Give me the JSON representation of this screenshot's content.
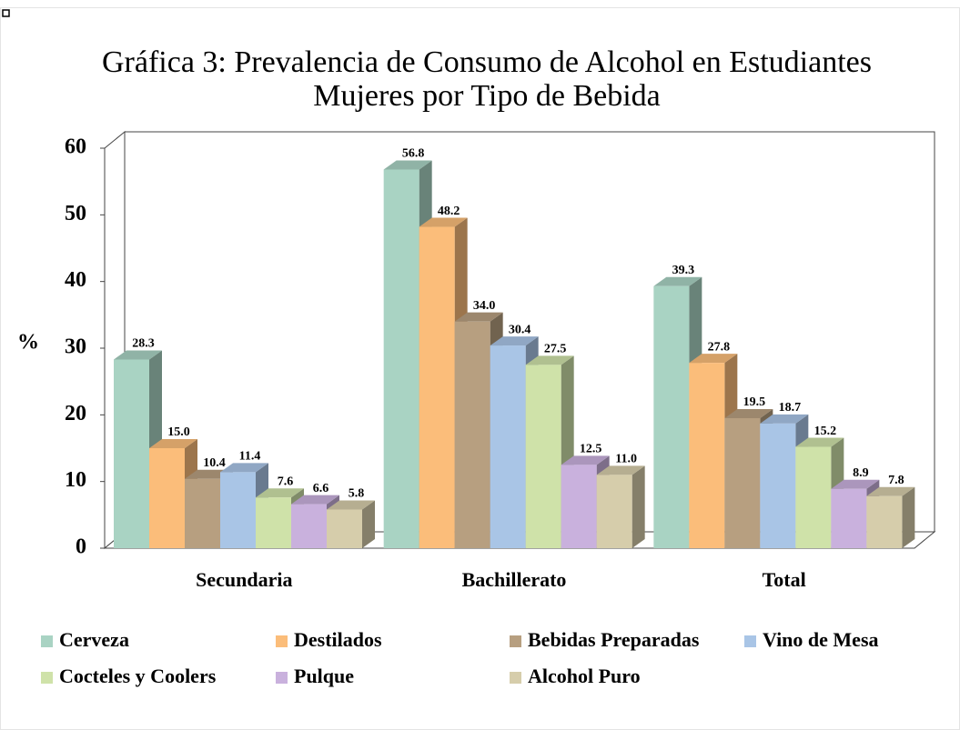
{
  "chart_data": {
    "type": "bar3d",
    "title": [
      "Gráfica 3: Prevalencia de Consumo de Alcohol en Estudiantes",
      "Mujeres por Tipo de Bebida"
    ],
    "ylabel": "%",
    "categories": [
      "Secundaria",
      "Bachillerato",
      "Total"
    ],
    "ylim": [
      0,
      60
    ],
    "yticks": [
      0,
      10,
      20,
      30,
      40,
      50,
      60
    ],
    "grid": false,
    "series": [
      {
        "name": "Cerveza",
        "color": "#a9d3c3",
        "values": [
          28.3,
          56.8,
          39.3
        ],
        "value_labels": [
          "28.3",
          "56.8",
          "39.3"
        ]
      },
      {
        "name": "Destilados",
        "color": "#fbbd7a",
        "values": [
          15.0,
          48.2,
          27.8
        ],
        "value_labels": [
          "15.0",
          "48.2",
          "27.8"
        ]
      },
      {
        "name": "Bebidas Preparadas",
        "color": "#b79f80",
        "values": [
          10.4,
          34.0,
          19.5
        ],
        "value_labels": [
          "10.4",
          "34.0",
          "19.5"
        ]
      },
      {
        "name": "Vino de Mesa",
        "color": "#a9c5e6",
        "values": [
          11.4,
          30.4,
          18.7
        ],
        "value_labels": [
          "11.4",
          "30.4",
          "18.7"
        ]
      },
      {
        "name": "Cocteles y Coolers",
        "color": "#cfe2a9",
        "values": [
          7.6,
          27.5,
          15.2
        ],
        "value_labels": [
          "7.6",
          "27.5",
          "15.2"
        ]
      },
      {
        "name": "Pulque",
        "color": "#c9b1dd",
        "values": [
          6.6,
          12.5,
          8.9
        ],
        "value_labels": [
          "6.6",
          "12.5",
          "8.9"
        ]
      },
      {
        "name": "Alcohol Puro",
        "color": "#d6cdab",
        "values": [
          5.8,
          11.0,
          7.8
        ],
        "value_labels": [
          "5.8",
          "11.0",
          "7.8"
        ]
      }
    ]
  }
}
